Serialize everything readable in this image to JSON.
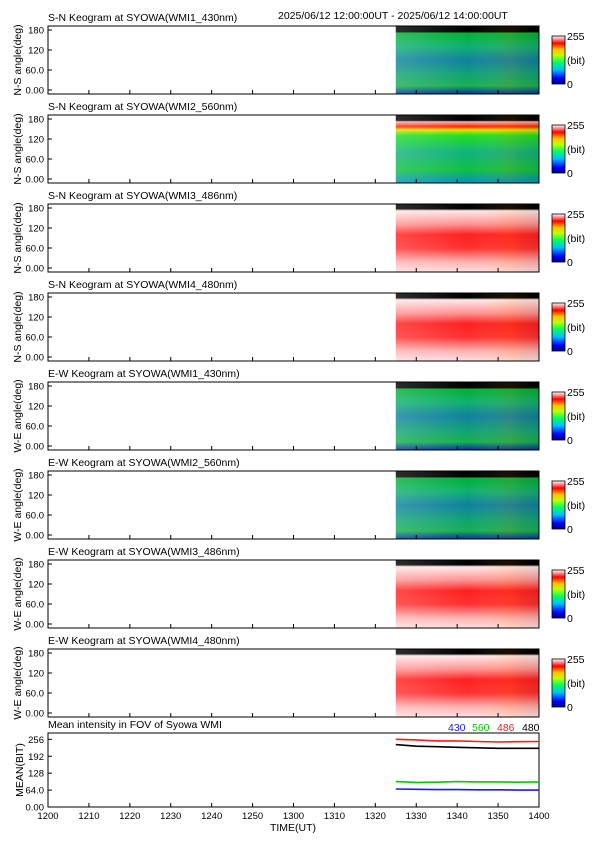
{
  "header": {
    "time_range": "2025/06/12 12:00:00UT - 2025/06/12 14:00:00UT"
  },
  "colorbar": {
    "max_label": "255",
    "unit_label": "(bit)",
    "min_label": "0"
  },
  "keogram_yticks": [
    "180",
    "120",
    "60.0",
    "0.00"
  ],
  "panels": [
    {
      "title": "S-N Keogram at SYOWA(WMI1_430nm)",
      "ylabel": "N-S angle(deg)",
      "scheme": "green",
      "data_start_ut": "13:25"
    },
    {
      "title": "S-N Keogram at SYOWA(WMI2_560nm)",
      "ylabel": "N-S angle(deg)",
      "scheme": "green-red",
      "data_start_ut": "13:25"
    },
    {
      "title": "S-N Keogram at SYOWA(WMI3_486nm)",
      "ylabel": "N-S angle(deg)",
      "scheme": "red",
      "data_start_ut": "13:25"
    },
    {
      "title": "S-N Keogram at SYOWA(WMI4_480nm)",
      "ylabel": "N-S angle(deg)",
      "scheme": "red",
      "data_start_ut": "13:25"
    },
    {
      "title": "E-W Keogram at SYOWA(WMI1_430nm)",
      "ylabel": "W-E angle(deg)",
      "scheme": "green",
      "data_start_ut": "13:25"
    },
    {
      "title": "E-W Keogram at SYOWA(WMI2_560nm)",
      "ylabel": "W-E angle(deg)",
      "scheme": "green",
      "data_start_ut": "13:25"
    },
    {
      "title": "E-W Keogram at SYOWA(WMI3_486nm)",
      "ylabel": "W-E angle(deg)",
      "scheme": "red",
      "data_start_ut": "13:25"
    },
    {
      "title": "E-W Keogram at SYOWA(WMI4_480nm)",
      "ylabel": "W-E angle(deg)",
      "scheme": "red",
      "data_start_ut": "13:25"
    }
  ],
  "chart_data": {
    "type": "line",
    "title": "Mean intensity in FOV of Syowa WMI",
    "xlabel": "TIME(UT)",
    "ylabel": "MEAN(BIT)",
    "x_ticks": [
      "1200",
      "1210",
      "1220",
      "1230",
      "1240",
      "1250",
      "1300",
      "1310",
      "1320",
      "1330",
      "1340",
      "1350",
      "1400"
    ],
    "y_ticks": [
      "256",
      "192",
      "128",
      "64.0",
      "0.00"
    ],
    "xlim": [
      "12:00",
      "14:00"
    ],
    "ylim": [
      0,
      280
    ],
    "x": [
      "13:25",
      "13:30",
      "13:35",
      "13:40",
      "13:45",
      "13:50",
      "13:55",
      "14:00"
    ],
    "series": [
      {
        "name": "430",
        "color": "#1a1aff",
        "values": [
          68,
          67,
          66,
          66,
          65,
          65,
          64,
          64
        ]
      },
      {
        "name": "560",
        "color": "#00cc00",
        "values": [
          96,
          93,
          94,
          96,
          95,
          95,
          94,
          95
        ]
      },
      {
        "name": "486",
        "color": "#ff1a1a",
        "values": [
          256,
          254,
          250,
          250,
          248,
          246,
          247,
          248
        ]
      },
      {
        "name": "480",
        "color": "#000000",
        "values": [
          236,
          230,
          228,
          226,
          224,
          222,
          222,
          222
        ]
      }
    ]
  }
}
